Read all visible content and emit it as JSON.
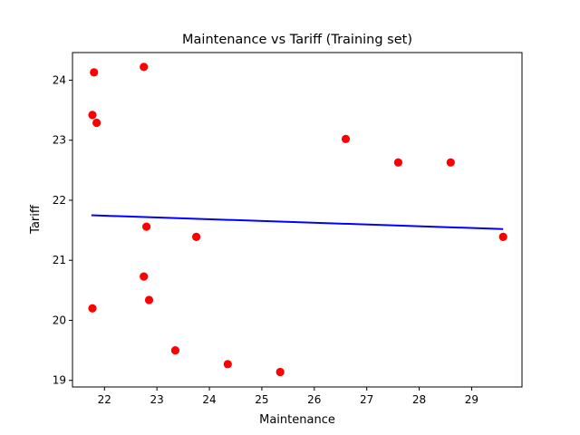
{
  "chart_data": {
    "type": "scatter",
    "title": "Maintenance vs Tariff (Training set)",
    "xlabel": "Maintenance",
    "ylabel": "Tariff",
    "xlim": [
      21.39,
      29.96
    ],
    "ylim": [
      18.89,
      24.46
    ],
    "xticks": [
      22,
      23,
      24,
      25,
      26,
      27,
      28,
      29
    ],
    "yticks": [
      19,
      20,
      21,
      22,
      23,
      24
    ],
    "grid": false,
    "points_color": "#ff0000",
    "line_color": "#0000ff",
    "points": [
      {
        "x": 21.8,
        "y": 24.13
      },
      {
        "x": 22.75,
        "y": 24.22
      },
      {
        "x": 21.77,
        "y": 23.42
      },
      {
        "x": 21.85,
        "y": 23.29
      },
      {
        "x": 26.6,
        "y": 23.02
      },
      {
        "x": 27.6,
        "y": 22.63
      },
      {
        "x": 28.6,
        "y": 22.63
      },
      {
        "x": 22.8,
        "y": 21.56
      },
      {
        "x": 23.75,
        "y": 21.39
      },
      {
        "x": 29.6,
        "y": 21.39
      },
      {
        "x": 22.75,
        "y": 20.73
      },
      {
        "x": 22.85,
        "y": 20.34
      },
      {
        "x": 21.77,
        "y": 20.2
      },
      {
        "x": 23.35,
        "y": 19.5
      },
      {
        "x": 24.35,
        "y": 19.27
      },
      {
        "x": 25.35,
        "y": 19.14
      }
    ],
    "regression_line": {
      "x": [
        21.75,
        29.6
      ],
      "y": [
        21.75,
        21.52
      ]
    }
  }
}
